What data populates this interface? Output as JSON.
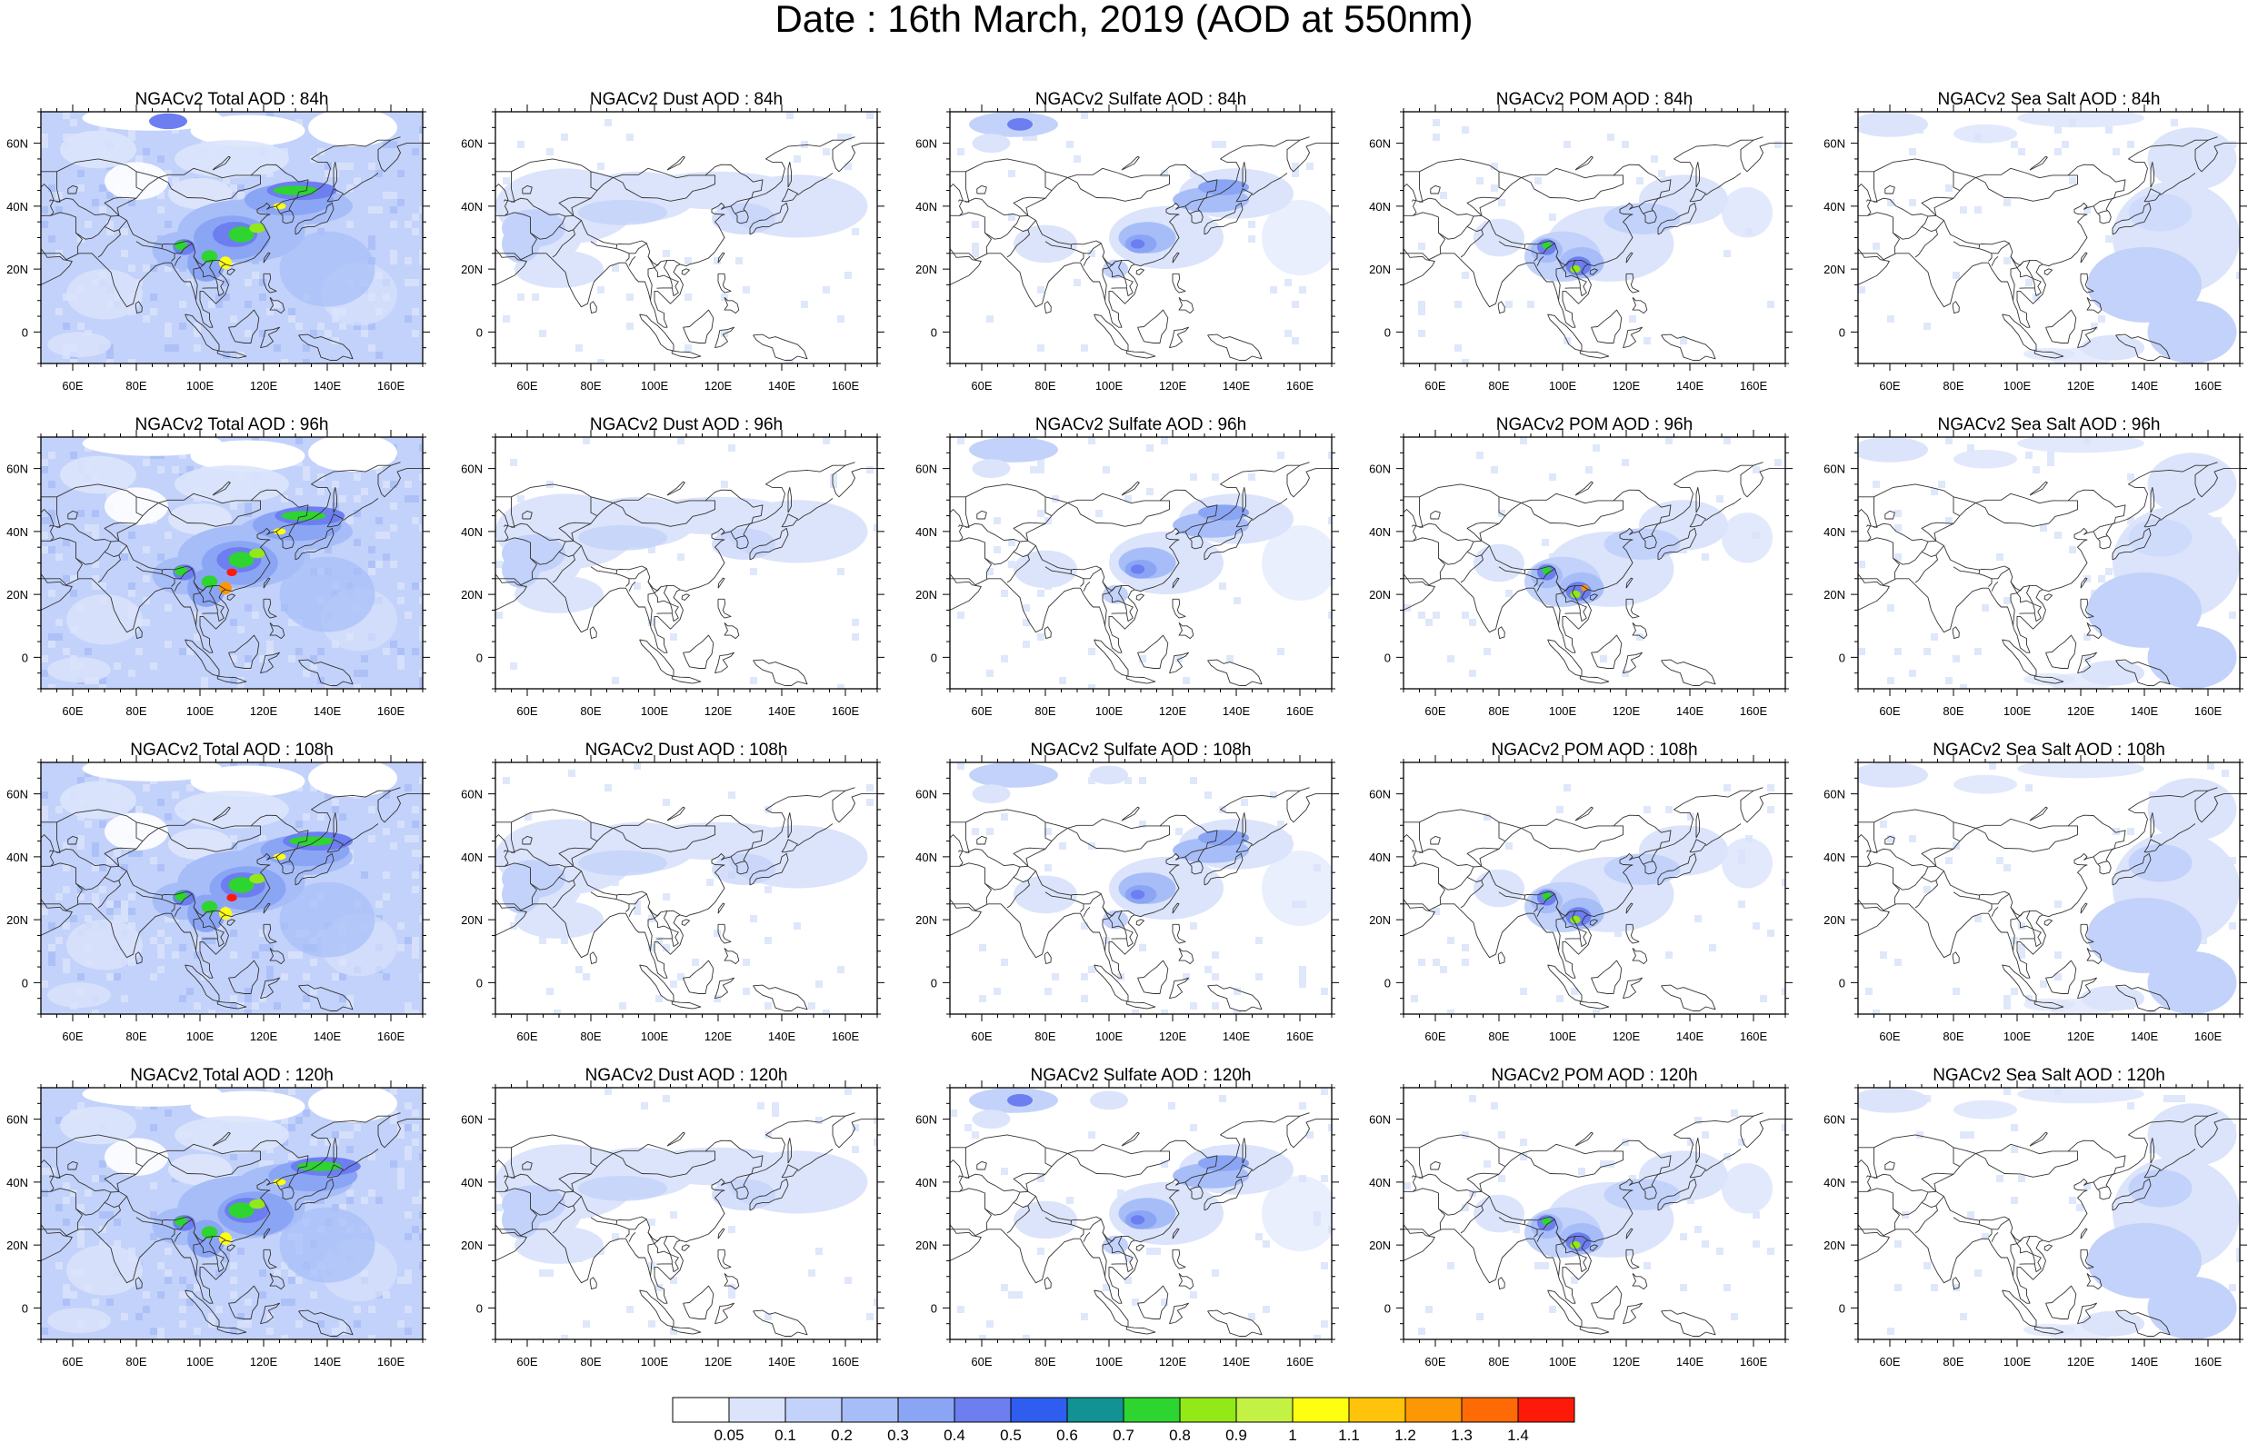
{
  "title": "Date : 16th March, 2019 (AOD at 550nm)",
  "map": {
    "domain": "East Asia / Western Pacific",
    "lon_range": [
      50,
      170
    ],
    "lat_range": [
      -10,
      70
    ],
    "lon_ticks": [
      "60E",
      "80E",
      "100E",
      "120E",
      "140E",
      "160E"
    ],
    "lat_ticks": [
      "60N",
      "40N",
      "20N",
      "0"
    ],
    "coastlines": true,
    "country_borders": true
  },
  "rows": [
    "84h",
    "96h",
    "108h",
    "120h"
  ],
  "panels": [
    {
      "title": "NGACv2 Total AOD : 84h"
    },
    {
      "title": "NGACv2 Dust AOD : 84h"
    },
    {
      "title": "NGACv2 Sulfate AOD : 84h"
    },
    {
      "title": "NGACv2 POM AOD : 84h"
    },
    {
      "title": "NGACv2 Sea Salt AOD : 84h"
    },
    {
      "title": "NGACv2 Total AOD : 96h"
    },
    {
      "title": "NGACv2 Dust AOD : 96h"
    },
    {
      "title": "NGACv2 Sulfate AOD : 96h"
    },
    {
      "title": "NGACv2 POM AOD : 96h"
    },
    {
      "title": "NGACv2 Sea Salt AOD : 96h"
    },
    {
      "title": "NGACv2 Total AOD : 108h"
    },
    {
      "title": "NGACv2 Dust AOD : 108h"
    },
    {
      "title": "NGACv2 Sulfate AOD : 108h"
    },
    {
      "title": "NGACv2 POM AOD : 108h"
    },
    {
      "title": "NGACv2 Sea Salt AOD : 108h"
    },
    {
      "title": "NGACv2 Total AOD : 120h"
    },
    {
      "title": "NGACv2 Dust AOD : 120h"
    },
    {
      "title": "NGACv2 Sulfate AOD : 120h"
    },
    {
      "title": "NGACv2 POM AOD : 120h"
    },
    {
      "title": "NGACv2 Sea Salt  AOD : 120h"
    }
  ],
  "colorbar": {
    "labels": [
      "0.05",
      "0.1",
      "0.2",
      "0.3",
      "0.4",
      "0.5",
      "0.6",
      "0.7",
      "0.8",
      "0.9",
      "1",
      "1.1",
      "1.2",
      "1.3",
      "1.4"
    ],
    "colors": [
      "#ffffff",
      "#dbe4fb",
      "#c3d2fa",
      "#a7bdf8",
      "#8ba5f5",
      "#6c7ef0",
      "#2f5df0",
      "#139293",
      "#2ed42f",
      "#93e818",
      "#c3f244",
      "#fefe11",
      "#fec30a",
      "#fe9705",
      "#fe6a06",
      "#fe1a09"
    ]
  }
}
